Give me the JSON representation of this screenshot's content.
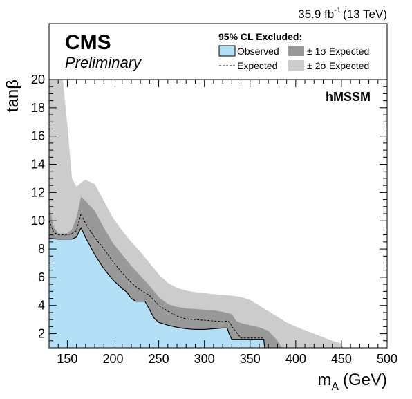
{
  "chart_data": {
    "type": "area",
    "experiment": "CMS",
    "status": "Preliminary",
    "lumi_value": "35.9 fb",
    "lumi_exp": "-1",
    "lumi_energy": "(13 TeV)",
    "scenario": "hMSSM",
    "legend_title": "95% CL Excluded:",
    "legend_position": "top",
    "xlabel": "m",
    "xlabel_sub": "A",
    "xlabel_unit": "(GeV)",
    "ylabel": "tanβ",
    "xlim": [
      130,
      500
    ],
    "ylim": [
      1,
      20
    ],
    "xticks": [
      150,
      200,
      250,
      300,
      350,
      400,
      450,
      500
    ],
    "yticks": [
      2,
      4,
      6,
      8,
      10,
      12,
      14,
      16,
      18,
      20
    ],
    "grid": false,
    "colors": {
      "observed": "#b3e0f7",
      "observed_line": "#000000",
      "band_1sigma": "#999999",
      "band_2sigma": "#cccccc",
      "expected_line": "#000000"
    },
    "series": [
      {
        "name": "± 2σ Expected",
        "kind": "band",
        "x": [
          130,
          135,
          140,
          145,
          150,
          155,
          160,
          165,
          170,
          180,
          190,
          200,
          210,
          220,
          230,
          240,
          250,
          260,
          270,
          280,
          290,
          300,
          310,
          320,
          330,
          340,
          350,
          360,
          370,
          380,
          390,
          400,
          410,
          420,
          430,
          440,
          450,
          452
        ],
        "upper": [
          20,
          20,
          20,
          20,
          16.8,
          13.0,
          12.4,
          12.7,
          12.9,
          12.6,
          11.4,
          10.2,
          9.3,
          8.5,
          7.8,
          7.0,
          6.2,
          5.6,
          5.25,
          5.05,
          4.95,
          4.88,
          4.8,
          4.75,
          4.7,
          4.6,
          4.4,
          4.0,
          3.6,
          3.2,
          2.8,
          2.5,
          2.25,
          2.0,
          1.75,
          1.5,
          1.3,
          1.0
        ]
      },
      {
        "name": "± 1σ Expected",
        "kind": "band",
        "x": [
          130,
          135,
          140,
          145,
          150,
          155,
          160,
          165,
          170,
          180,
          190,
          200,
          210,
          220,
          230,
          240,
          250,
          260,
          270,
          280,
          290,
          300,
          310,
          320,
          330,
          335,
          340,
          350,
          360,
          370,
          380,
          385
        ],
        "upper": [
          11.1,
          9.6,
          9.1,
          9.1,
          9.1,
          9.4,
          10.2,
          11.7,
          11.4,
          10.7,
          9.5,
          8.4,
          7.6,
          6.8,
          6.1,
          5.4,
          4.6,
          4.1,
          3.9,
          3.8,
          3.75,
          3.7,
          3.65,
          3.55,
          3.4,
          2.9,
          2.75,
          2.6,
          2.45,
          2.2,
          1.5,
          1.0
        ]
      },
      {
        "name": "Observed",
        "kind": "filled",
        "x": [
          130,
          140,
          150,
          155,
          160,
          165,
          170,
          180,
          190,
          200,
          210,
          215,
          220,
          225,
          230,
          235,
          240,
          245,
          250,
          260,
          270,
          280,
          290,
          300,
          310,
          320,
          325,
          327,
          330,
          340,
          350,
          360,
          365,
          366
        ],
        "upper": [
          8.75,
          8.7,
          8.7,
          8.7,
          8.85,
          9.5,
          8.8,
          7.6,
          6.6,
          5.8,
          5.2,
          4.95,
          4.5,
          4.3,
          4.3,
          4.3,
          3.7,
          3.1,
          2.8,
          2.6,
          2.45,
          2.35,
          2.3,
          2.3,
          2.35,
          2.4,
          2.4,
          2.0,
          1.6,
          1.6,
          1.6,
          1.6,
          1.6,
          1.0
        ]
      },
      {
        "name": "Expected",
        "kind": "dashed",
        "x": [
          130,
          135,
          140,
          145,
          150,
          155,
          160,
          165,
          170,
          180,
          190,
          200,
          210,
          220,
          230,
          240,
          250,
          260,
          270,
          280,
          290,
          300,
          310,
          320,
          325,
          328,
          330,
          340,
          350,
          365
        ],
        "y": [
          10.0,
          9.2,
          9.0,
          9.0,
          9.0,
          9.1,
          9.3,
          10.5,
          9.8,
          8.8,
          8.0,
          7.1,
          6.3,
          5.6,
          5.1,
          4.7,
          4.0,
          3.6,
          3.25,
          3.05,
          3.0,
          2.95,
          2.9,
          2.85,
          2.9,
          2.8,
          2.5,
          1.7,
          1.7,
          1.7
        ]
      }
    ],
    "legend": [
      {
        "label": "Observed",
        "symbol": "observed"
      },
      {
        "label": "Expected",
        "symbol": "dashed"
      },
      {
        "label": "± 1σ Expected",
        "symbol": "band_1sigma"
      },
      {
        "label": "± 2σ Expected",
        "symbol": "band_2sigma"
      }
    ]
  }
}
